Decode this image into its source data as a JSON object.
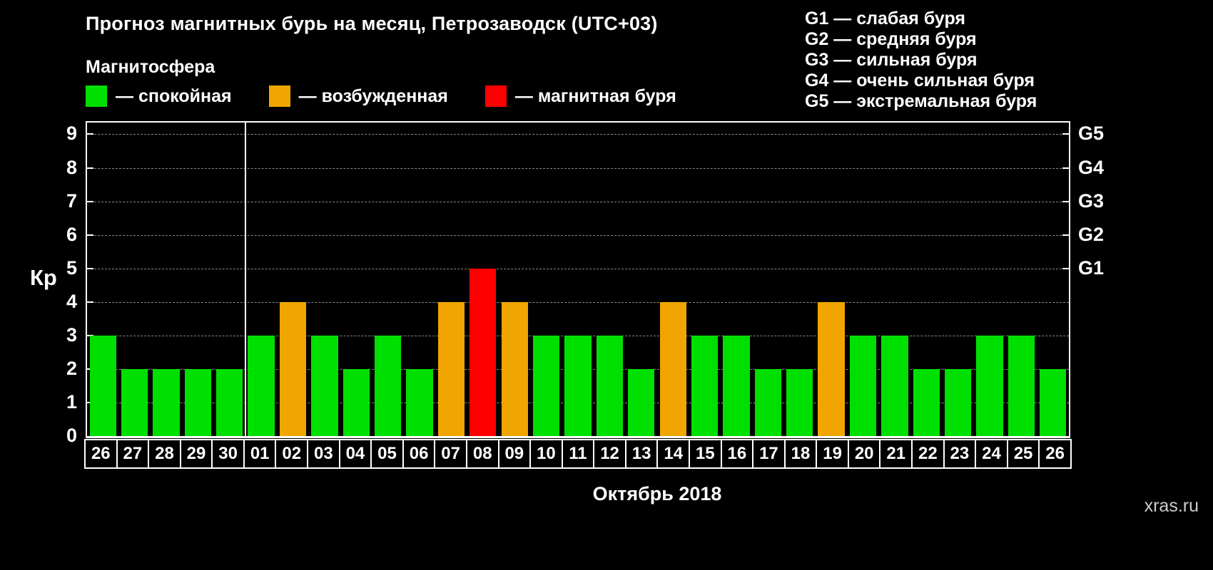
{
  "header": {
    "title": "Прогноз магнитных бурь на месяц, Петрозаводск (UTC+03)"
  },
  "g_scale_legend": {
    "items": [
      "G1 — слабая буря",
      "G2 — средняя буря",
      "G3 — сильная буря",
      "G4 — очень сильная буря",
      "G5 — экстремальная буря"
    ]
  },
  "legend": {
    "title": "Магнитосфера",
    "items": [
      {
        "label": "— спокойная",
        "color_key": "green"
      },
      {
        "label": "— возбужденная",
        "color_key": "orange"
      },
      {
        "label": "— магнитная буря",
        "color_key": "red"
      }
    ]
  },
  "palette": {
    "green": "#00e000",
    "orange": "#f0a500",
    "red": "#ff0000",
    "gridline": "#888888",
    "axis": "#ffffff",
    "background": "#000000"
  },
  "chart_data": {
    "type": "bar",
    "title": "Прогноз магнитных бурь на месяц, Петрозаводск (UTC+03)",
    "xlabel": "Октябрь 2018",
    "ylabel": "Кр",
    "ylim": [
      0,
      9.35
    ],
    "yticks": [
      0,
      1,
      2,
      3,
      4,
      5,
      6,
      7,
      8,
      9
    ],
    "grid": "dashed-horizontal",
    "legend_position": "top-left",
    "right_axis": [
      {
        "label": "G1",
        "value": 5
      },
      {
        "label": "G2",
        "value": 6
      },
      {
        "label": "G3",
        "value": 7
      },
      {
        "label": "G4",
        "value": 8
      },
      {
        "label": "G5",
        "value": 9
      }
    ],
    "separator_after_index": 4,
    "categories": [
      "26",
      "27",
      "28",
      "29",
      "30",
      "01",
      "02",
      "03",
      "04",
      "05",
      "06",
      "07",
      "08",
      "09",
      "10",
      "11",
      "12",
      "13",
      "14",
      "15",
      "16",
      "17",
      "18",
      "19",
      "20",
      "21",
      "22",
      "23",
      "24",
      "25",
      "26"
    ],
    "values": [
      3,
      2,
      2,
      2,
      2,
      3,
      4,
      3,
      2,
      3,
      2,
      4,
      5,
      4,
      3,
      3,
      3,
      2,
      4,
      3,
      3,
      2,
      2,
      4,
      3,
      3,
      2,
      2,
      3,
      3,
      2
    ],
    "bar_colors": [
      "green",
      "green",
      "green",
      "green",
      "green",
      "green",
      "orange",
      "green",
      "green",
      "green",
      "green",
      "orange",
      "red",
      "orange",
      "green",
      "green",
      "green",
      "green",
      "orange",
      "green",
      "green",
      "green",
      "green",
      "orange",
      "green",
      "green",
      "green",
      "green",
      "green",
      "green",
      "green"
    ]
  },
  "footer": {
    "month_label": "Октябрь 2018",
    "watermark": "xras.ru"
  }
}
